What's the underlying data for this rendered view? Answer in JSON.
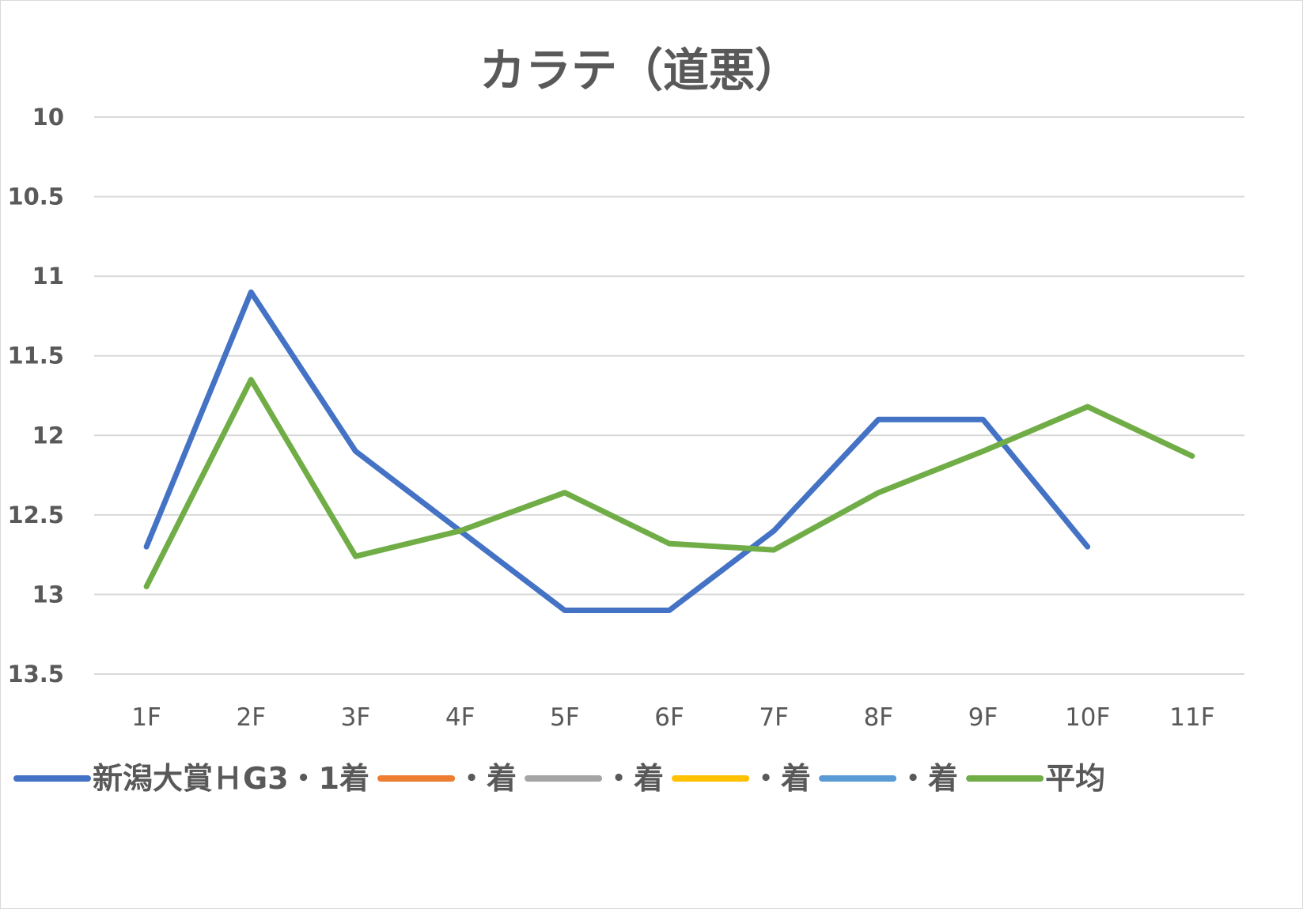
{
  "chart_data": {
    "type": "line",
    "title": "カラテ（道悪）",
    "categories": [
      "1F",
      "2F",
      "3F",
      "4F",
      "5F",
      "6F",
      "7F",
      "8F",
      "9F",
      "10F",
      "11F"
    ],
    "y_ticks": [
      "10",
      "10.5",
      "11",
      "11.5",
      "12",
      "12.5",
      "13",
      "13.5"
    ],
    "ylim": [
      10,
      13.5
    ],
    "y_reversed": true,
    "grid": true,
    "legend_position": "bottom",
    "series": [
      {
        "name": "新潟大賞ＨG3・1着",
        "color": "#4472c4",
        "values": [
          12.7,
          11.1,
          12.1,
          12.6,
          13.1,
          13.1,
          12.6,
          11.9,
          11.9,
          12.7,
          null
        ]
      },
      {
        "name": "・着",
        "color": "#ed7d31",
        "values": [
          null,
          null,
          null,
          null,
          null,
          null,
          null,
          null,
          null,
          null,
          null
        ]
      },
      {
        "name": "・着",
        "color": "#a5a5a5",
        "values": [
          null,
          null,
          null,
          null,
          null,
          null,
          null,
          null,
          null,
          null,
          null
        ]
      },
      {
        "name": "・着",
        "color": "#ffc000",
        "values": [
          null,
          null,
          null,
          null,
          null,
          null,
          null,
          null,
          null,
          null,
          null
        ]
      },
      {
        "name": "・着",
        "color": "#5b9bd5",
        "values": [
          null,
          null,
          null,
          null,
          null,
          null,
          null,
          null,
          null,
          null,
          null
        ]
      },
      {
        "name": "平均",
        "color": "#70ad47",
        "values": [
          12.95,
          11.65,
          12.76,
          12.6,
          12.36,
          12.68,
          12.72,
          12.36,
          12.1,
          11.82,
          12.13
        ]
      }
    ]
  }
}
